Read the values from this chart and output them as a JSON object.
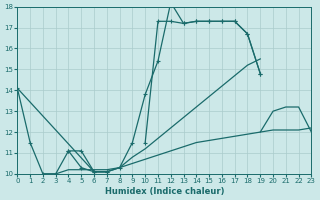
{
  "xlabel": "Humidex (Indice chaleur)",
  "xlim": [
    0,
    23
  ],
  "ylim": [
    10,
    18
  ],
  "xticks": [
    0,
    1,
    2,
    3,
    4,
    5,
    6,
    7,
    8,
    9,
    10,
    11,
    12,
    13,
    14,
    15,
    16,
    17,
    18,
    19,
    20,
    21,
    22,
    23
  ],
  "yticks": [
    10,
    11,
    12,
    13,
    14,
    15,
    16,
    17,
    18
  ],
  "background_color": "#cce8e8",
  "grid_color": "#aacccc",
  "line_color": "#1a6b6b",
  "series": [
    {
      "name": "drop_early",
      "x": [
        0,
        1,
        2,
        3,
        4,
        5,
        6,
        7
      ],
      "y": [
        14.1,
        11.5,
        10.0,
        10.0,
        11.1,
        11.1,
        10.1,
        10.1
      ],
      "marker": true
    },
    {
      "name": "flat_rise",
      "x": [
        2,
        3,
        4,
        5,
        6,
        7,
        8,
        9,
        10,
        11,
        12,
        13,
        14,
        15,
        16,
        17,
        18,
        19,
        20,
        21,
        22,
        23
      ],
      "y": [
        10.0,
        10.0,
        10.2,
        10.2,
        10.2,
        10.2,
        10.3,
        10.5,
        10.7,
        10.9,
        11.1,
        11.3,
        11.5,
        11.6,
        11.7,
        11.8,
        11.9,
        12.0,
        12.1,
        12.1,
        12.1,
        12.2
      ],
      "marker": false
    },
    {
      "name": "peaked_line",
      "x": [
        4,
        5,
        6,
        7,
        8,
        9,
        10,
        11,
        12,
        13,
        14,
        15,
        16,
        17,
        18,
        19
      ],
      "y": [
        11.1,
        10.3,
        10.1,
        10.1,
        10.3,
        11.5,
        13.8,
        15.4,
        18.2,
        17.2,
        17.3,
        17.3,
        17.3,
        17.3,
        16.7,
        14.8
      ],
      "marker": true
    },
    {
      "name": "plateau_line",
      "x": [
        10,
        11,
        12,
        13,
        14,
        15,
        16,
        17,
        18,
        19
      ],
      "y": [
        11.5,
        17.3,
        17.3,
        17.2,
        17.3,
        17.3,
        17.3,
        17.3,
        16.7,
        14.8
      ],
      "marker": true
    },
    {
      "name": "slant_line",
      "x": [
        0,
        6,
        7,
        8,
        9,
        10,
        11,
        12,
        13,
        14,
        15,
        16,
        17,
        18,
        19
      ],
      "y": [
        14.1,
        10.1,
        10.1,
        10.3,
        10.8,
        11.2,
        11.7,
        12.2,
        12.7,
        13.2,
        13.7,
        14.2,
        14.7,
        15.2,
        15.5
      ],
      "marker": false
    },
    {
      "name": "bump_end",
      "x": [
        19,
        20,
        21,
        22,
        23
      ],
      "y": [
        12.0,
        13.0,
        13.2,
        13.2,
        12.0
      ],
      "marker": false
    }
  ]
}
